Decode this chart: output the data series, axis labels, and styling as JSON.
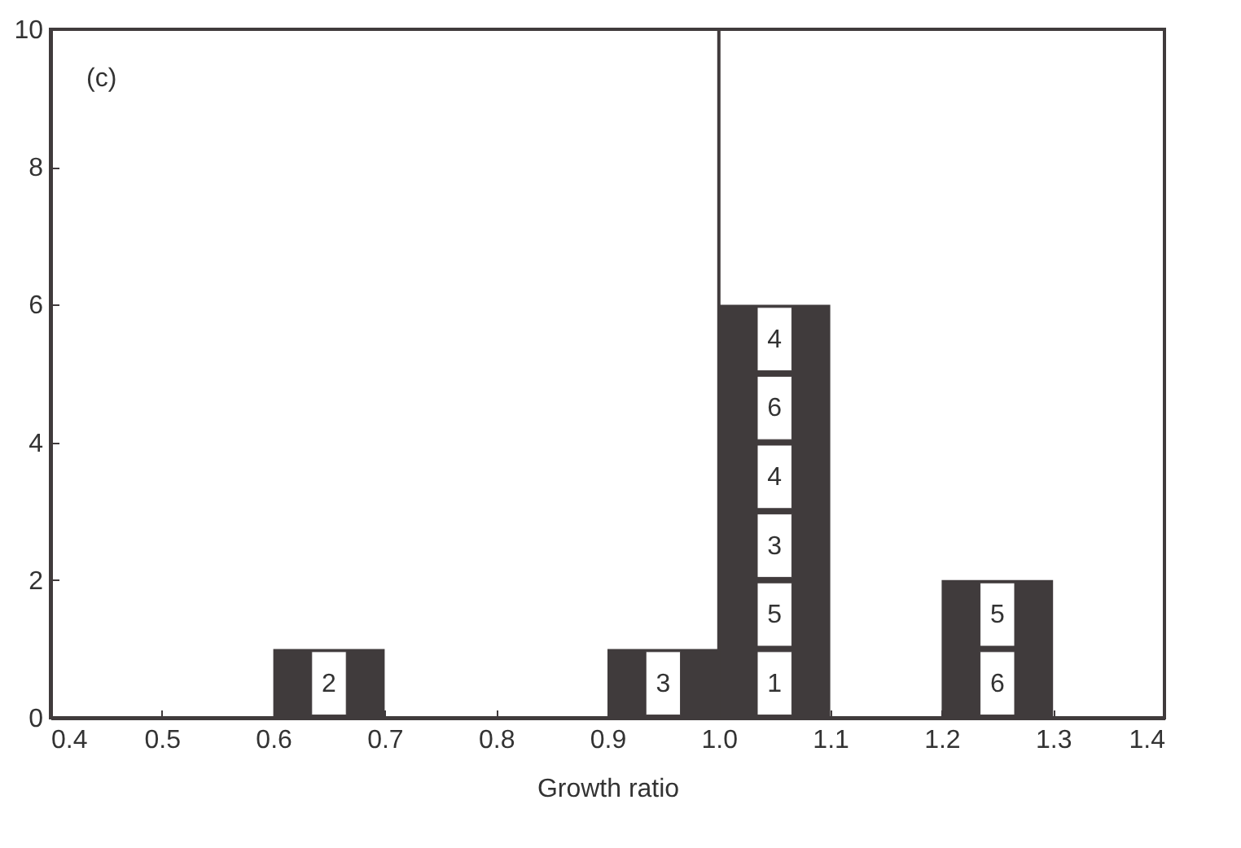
{
  "chart_data": {
    "type": "histogram",
    "xlabel": "Growth ratio",
    "color": "#403b3c",
    "bins": [
      0.4,
      0.5,
      0.6,
      0.7,
      0.8,
      0.9,
      1.0,
      1.1,
      1.2,
      1.3,
      1.4
    ],
    "values": [
      0,
      0,
      1,
      0,
      0,
      1,
      6,
      0,
      2,
      0
    ],
    "xlim": [
      0.4,
      1.4
    ],
    "xticks": [
      0.4,
      0.5,
      0.6,
      0.7,
      0.8,
      0.9,
      {
        "value": 1.0,
        "label": "1.0"
      },
      1.1,
      1.2,
      1.3,
      1.4
    ],
    "ylim": [
      0,
      10
    ],
    "yticks": [
      0,
      2,
      4,
      6,
      8,
      10
    ],
    "ref_lines": [
      {
        "axis": "x",
        "value": 1.0,
        "color": "#403b3c"
      }
    ],
    "annotations": [
      "(c)",
      {
        "text": "2",
        "x": 0.65,
        "y": 0.5
      },
      {
        "text": "3",
        "x": 0.95,
        "y": 0.5
      },
      {
        "text": "1",
        "x": 1.05,
        "y": 0.5
      },
      {
        "text": "5",
        "x": 1.05,
        "y": 1.5
      },
      {
        "text": "3",
        "x": 1.05,
        "y": 2.5
      },
      {
        "text": "4",
        "x": 1.05,
        "y": 3.5
      },
      {
        "text": "6",
        "x": 1.05,
        "y": 4.5
      },
      {
        "text": "4",
        "x": 1.05,
        "y": 5.5
      },
      {
        "text": "6",
        "x": 1.25,
        "y": 0.5
      },
      {
        "text": "5",
        "x": 1.25,
        "y": 1.5
      }
    ]
  }
}
